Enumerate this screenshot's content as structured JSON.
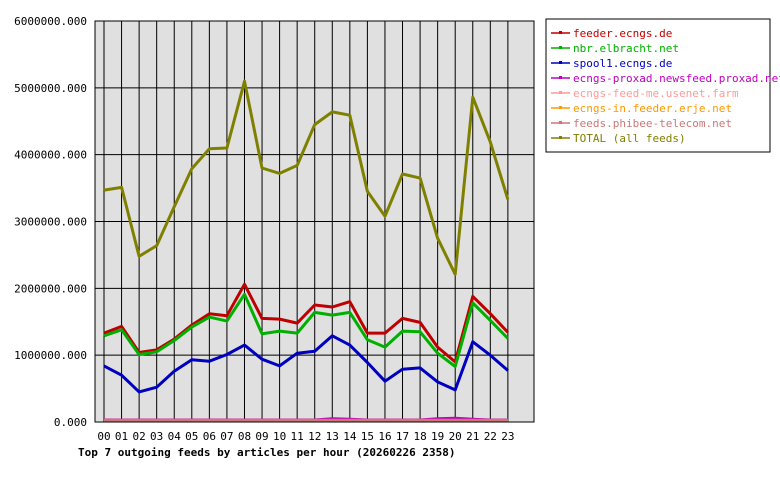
{
  "chart_data": {
    "type": "line",
    "title": "Top 7 outgoing feeds by articles per hour (20260226 2358)",
    "xlabel": "",
    "ylabel": "",
    "ylim": [
      0,
      6000000
    ],
    "yticks": [
      "0.000",
      "1000000.000",
      "2000000.000",
      "3000000.000",
      "4000000.000",
      "5000000.000",
      "6000000.000"
    ],
    "categories": [
      "00",
      "01",
      "02",
      "03",
      "04",
      "05",
      "06",
      "07",
      "08",
      "09",
      "10",
      "11",
      "12",
      "13",
      "14",
      "15",
      "16",
      "17",
      "18",
      "19",
      "20",
      "21",
      "22",
      "23"
    ],
    "grid": true,
    "legend_position": "right",
    "plot_background": "#e0e0e0",
    "series": [
      {
        "name": "feeder.ecngs.de",
        "color": "#c00000",
        "values": [
          1330000,
          1430000,
          1040000,
          1080000,
          1240000,
          1450000,
          1620000,
          1590000,
          2060000,
          1550000,
          1540000,
          1480000,
          1750000,
          1720000,
          1800000,
          1330000,
          1330000,
          1550000,
          1490000,
          1120000,
          900000,
          1880000,
          1620000,
          1340000
        ]
      },
      {
        "name": "nbr.elbracht.net",
        "color": "#00b000",
        "values": [
          1290000,
          1380000,
          1010000,
          1050000,
          1220000,
          1420000,
          1570000,
          1510000,
          1910000,
          1320000,
          1360000,
          1330000,
          1640000,
          1600000,
          1640000,
          1230000,
          1120000,
          1360000,
          1350000,
          1030000,
          830000,
          1780000,
          1520000,
          1250000
        ]
      },
      {
        "name": "spool1.ecngs.de",
        "color": "#0000c0",
        "values": [
          840000,
          700000,
          450000,
          520000,
          760000,
          930000,
          910000,
          1010000,
          1150000,
          940000,
          840000,
          1030000,
          1060000,
          1290000,
          1150000,
          890000,
          610000,
          790000,
          810000,
          600000,
          480000,
          1200000,
          1000000,
          770000
        ]
      },
      {
        "name": "ecngs-proxad.newsfeed.proxad.net",
        "color": "#c000c0",
        "values": [
          30000,
          30000,
          30000,
          30000,
          30000,
          30000,
          30000,
          30000,
          30000,
          30000,
          30000,
          30000,
          30000,
          50000,
          40000,
          30000,
          30000,
          30000,
          30000,
          50000,
          55000,
          40000,
          30000,
          30000
        ]
      },
      {
        "name": "ecngs-feed-me.usenet.farm",
        "color": "#ff9999",
        "values": [
          20000,
          20000,
          20000,
          20000,
          20000,
          20000,
          20000,
          20000,
          20000,
          20000,
          20000,
          20000,
          20000,
          20000,
          20000,
          20000,
          20000,
          20000,
          20000,
          20000,
          20000,
          20000,
          20000,
          20000
        ]
      },
      {
        "name": "ecngs-in.feeder.erje.net",
        "color": "#ff9900",
        "values": [
          15000,
          15000,
          15000,
          15000,
          15000,
          15000,
          15000,
          15000,
          15000,
          15000,
          15000,
          15000,
          15000,
          15000,
          15000,
          15000,
          15000,
          15000,
          15000,
          15000,
          15000,
          15000,
          15000,
          15000
        ]
      },
      {
        "name": "feeds.phibee-telecom.net",
        "color": "#cc7777",
        "values": [
          25000,
          25000,
          25000,
          25000,
          25000,
          25000,
          25000,
          25000,
          25000,
          25000,
          25000,
          25000,
          25000,
          25000,
          25000,
          25000,
          25000,
          25000,
          25000,
          25000,
          25000,
          25000,
          25000,
          25000
        ]
      },
      {
        "name": "TOTAL (all feeds)",
        "color": "#808000",
        "values": [
          3470000,
          3510000,
          2480000,
          2640000,
          3220000,
          3790000,
          4090000,
          4100000,
          5100000,
          3800000,
          3720000,
          3840000,
          4450000,
          4640000,
          4590000,
          3450000,
          3080000,
          3710000,
          3650000,
          2750000,
          2210000,
          4860000,
          4190000,
          3330000
        ]
      }
    ]
  }
}
